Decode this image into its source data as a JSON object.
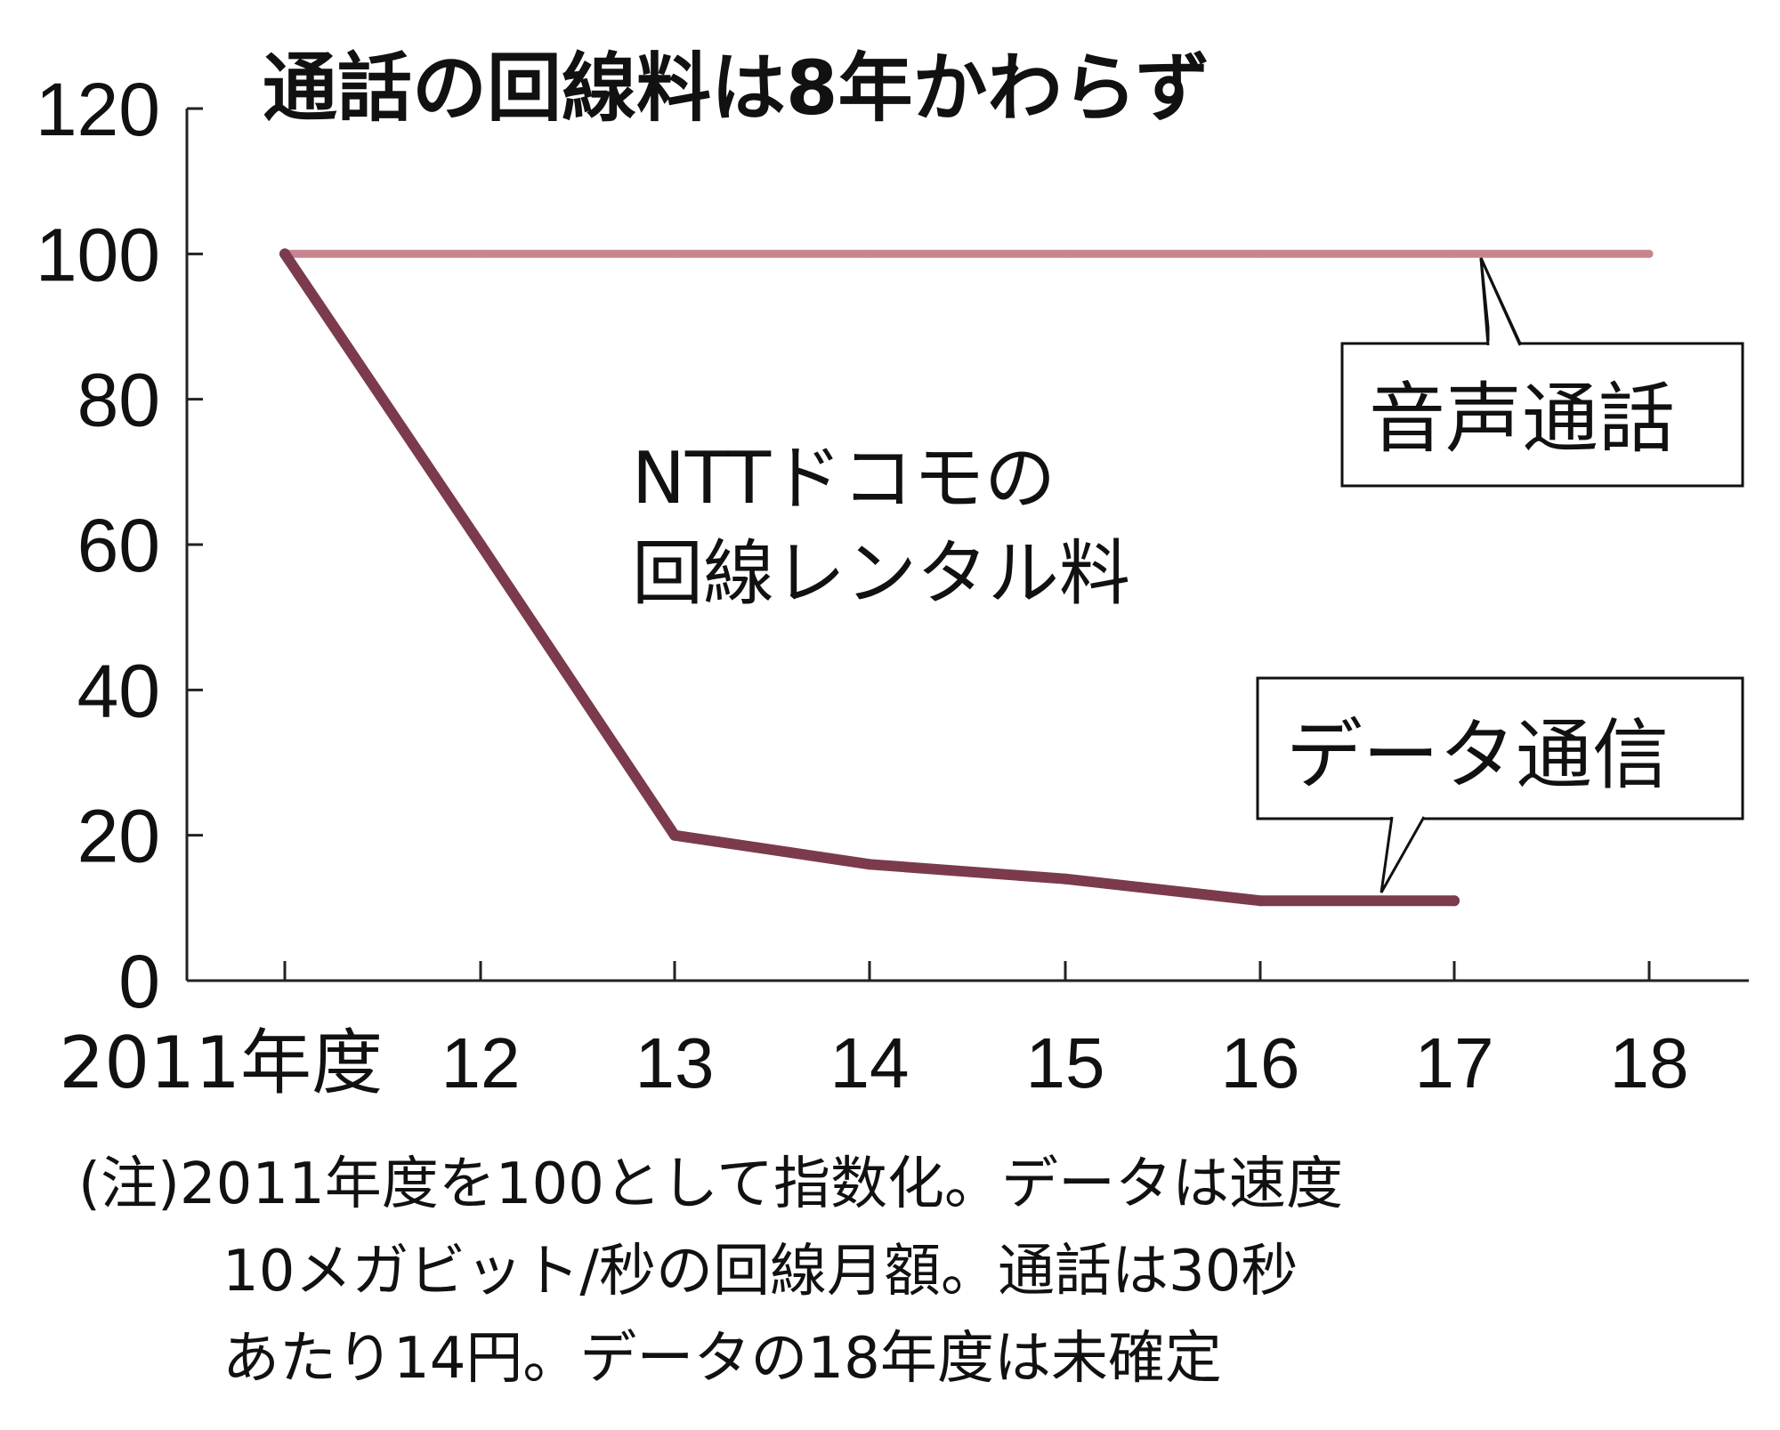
{
  "chart_data": {
    "type": "line",
    "title": "通話の回線料は8年かわらず",
    "annotation": [
      "NTTドコモの",
      "回線レンタル料"
    ],
    "x": [
      "2011年度",
      "12",
      "13",
      "14",
      "15",
      "16",
      "17",
      "18"
    ],
    "ylim": [
      0,
      120
    ],
    "yticks": [
      "0",
      "20",
      "40",
      "60",
      "80",
      "100",
      "120"
    ],
    "series": [
      {
        "name": "音声通話",
        "values": [
          100,
          100,
          100,
          100,
          100,
          100,
          100,
          100
        ],
        "color": "#c9858f"
      },
      {
        "name": "データ通信",
        "values": [
          100,
          60,
          20,
          16,
          14,
          11,
          11,
          null
        ],
        "color": "#7b3b4c"
      }
    ],
    "note": [
      "(注)2011年度を100として指数化。データは速度",
      "10メガビット/秒の回線月額。通話は30秒",
      "あたり14円。データの18年度は未確定"
    ],
    "grid": false
  }
}
